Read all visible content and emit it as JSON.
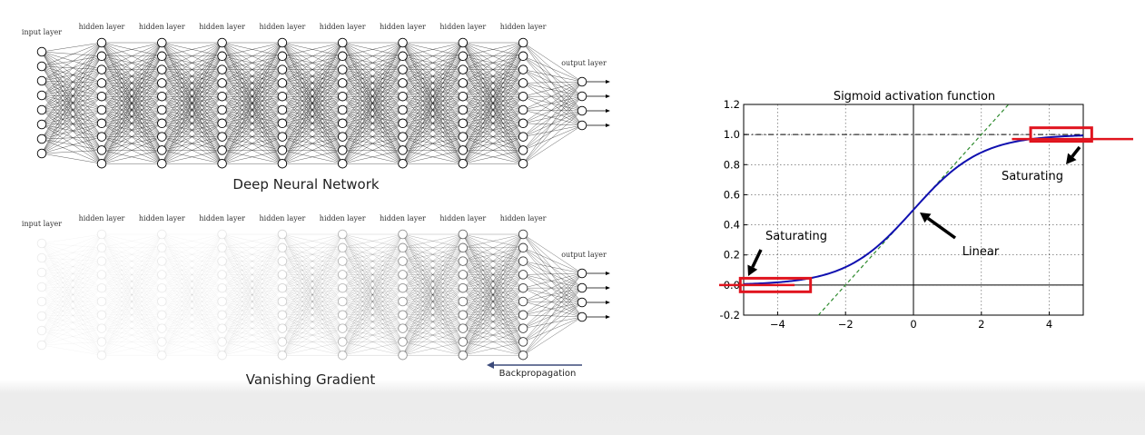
{
  "networks": [
    {
      "caption": "Deep Neural Network",
      "input_label": "input layer",
      "hidden_label": "hidden layer",
      "output_label": "output layer",
      "input_nodes": 8,
      "hidden_layers": 8,
      "hidden_nodes": 10,
      "output_nodes": 4,
      "faded": false
    },
    {
      "caption": "Vanishing Gradient",
      "input_label": "input layer",
      "hidden_label": "hidden layer",
      "output_label": "output layer",
      "input_nodes": 8,
      "hidden_layers": 8,
      "hidden_nodes": 10,
      "output_nodes": 4,
      "faded": true
    }
  ],
  "backprop": {
    "label": "Backpropagation",
    "arrow_color": "#3b4a7a"
  },
  "chart_data": {
    "type": "line",
    "title": "Sigmoid activation function",
    "xlabel": "",
    "ylabel": "",
    "xlim": [
      -5,
      5
    ],
    "ylim": [
      -0.2,
      1.2
    ],
    "xticks": [
      -4,
      -2,
      0,
      2,
      4
    ],
    "xtick_labels": [
      "−4",
      "−2",
      "0",
      "2",
      "4"
    ],
    "yticks": [
      -0.2,
      0.0,
      0.2,
      0.4,
      0.6,
      0.8,
      1.0,
      1.2
    ],
    "ytick_labels": [
      "-0.2",
      "0.0",
      "0.2",
      "0.4",
      "0.6",
      "0.8",
      "1.0",
      "1.2"
    ],
    "grid": true,
    "series": [
      {
        "function": "sigmoid",
        "color": "#1010b0",
        "style": "solid"
      },
      {
        "function": "linear",
        "slope": 0.25,
        "intercept": 0.5,
        "color": "#2e8b2e",
        "style": "dashed"
      }
    ],
    "reference_line": {
      "y": 1.0,
      "style": "dash-dot",
      "color": "#000000"
    },
    "annotations": [
      {
        "text": "Saturating",
        "position": "top-right"
      },
      {
        "text": "Linear",
        "position": "center"
      },
      {
        "text": "Saturating",
        "position": "bottom-left"
      }
    ],
    "highlight_color": "#e0141e"
  }
}
